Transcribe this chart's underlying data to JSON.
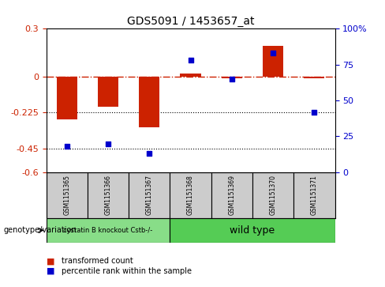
{
  "title": "GDS5091 / 1453657_at",
  "samples": [
    "GSM1151365",
    "GSM1151366",
    "GSM1151367",
    "GSM1151368",
    "GSM1151369",
    "GSM1151370",
    "GSM1151371"
  ],
  "red_values": [
    -0.27,
    -0.19,
    -0.32,
    0.02,
    -0.01,
    0.19,
    -0.01
  ],
  "blue_values_pct": [
    18,
    20,
    13,
    78,
    65,
    83,
    42
  ],
  "ylim_left": [
    -0.6,
    0.3
  ],
  "ylim_right": [
    0,
    100
  ],
  "yticks_left": [
    -0.6,
    -0.45,
    -0.225,
    0,
    0.3
  ],
  "yticks_right": [
    0,
    25,
    50,
    75,
    100
  ],
  "dotted_lines": [
    -0.225,
    -0.45
  ],
  "group1_label": "cystatin B knockout Cstb-/-",
  "group2_label": "wild type",
  "group1_indices": [
    0,
    1,
    2
  ],
  "group2_indices": [
    3,
    4,
    5,
    6
  ],
  "genotype_label": "genotype/variation",
  "legend1": "transformed count",
  "legend2": "percentile rank within the sample",
  "bar_color": "#cc2200",
  "dot_color": "#0000cc",
  "sample_bg": "#cccccc",
  "group1_color": "#88dd88",
  "group2_color": "#55cc55"
}
